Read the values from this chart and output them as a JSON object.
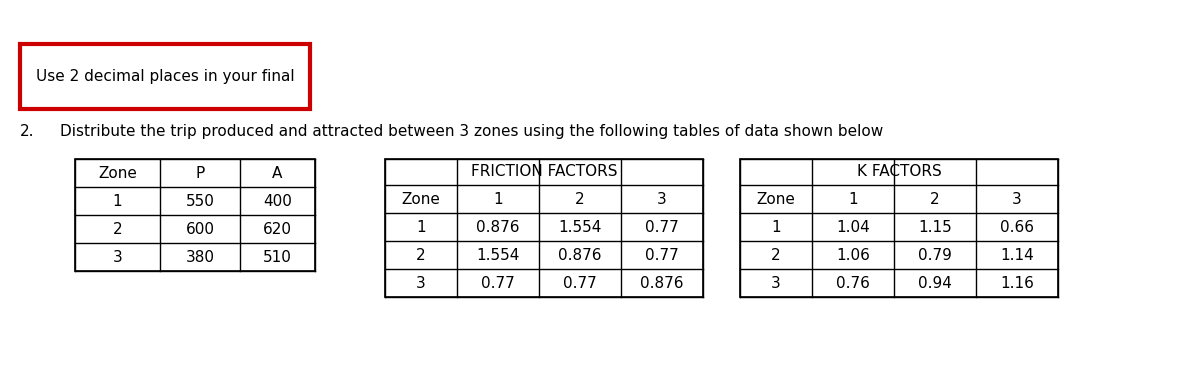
{
  "notice_text": "Use 2 decimal places in your final",
  "notice_box_color": "#cc0000",
  "question_number": "2.",
  "question_text": "Distribute the trip produced and attracted between 3 zones using the following tables of data shown below",
  "pa_table": {
    "headers": [
      "Zone",
      "P",
      "A"
    ],
    "rows": [
      [
        "1",
        "550",
        "400"
      ],
      [
        "2",
        "600",
        "620"
      ],
      [
        "3",
        "380",
        "510"
      ]
    ]
  },
  "friction_table": {
    "title": "FRICTION FACTORS",
    "headers": [
      "Zone",
      "1",
      "2",
      "3"
    ],
    "rows": [
      [
        "1",
        "0.876",
        "1.554",
        "0.77"
      ],
      [
        "2",
        "1.554",
        "0.876",
        "0.77"
      ],
      [
        "3",
        "0.77",
        "0.77",
        "0.876"
      ]
    ]
  },
  "k_table": {
    "title": "K FACTORS",
    "headers": [
      "Zone",
      "1",
      "2",
      "3"
    ],
    "rows": [
      [
        "1",
        "1.04",
        "1.15",
        "0.66"
      ],
      [
        "2",
        "1.06",
        "0.79",
        "1.14"
      ],
      [
        "3",
        "0.76",
        "0.94",
        "1.16"
      ]
    ]
  },
  "bg_color": "#ffffff",
  "text_color": "#000000",
  "fontsize_notice": 11,
  "fontsize_question": 11,
  "fontsize_table": 11
}
